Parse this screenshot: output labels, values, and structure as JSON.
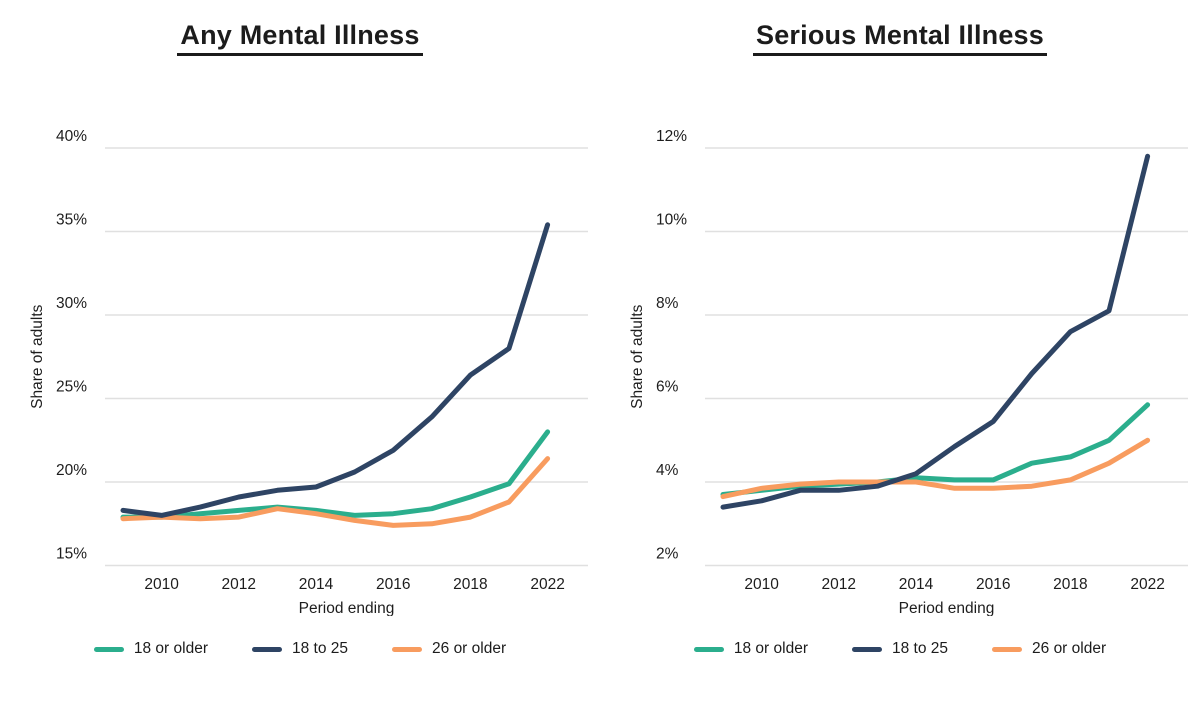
{
  "chart_data": [
    {
      "type": "line",
      "title": "Any Mental Illness",
      "xlabel": "Period ending",
      "ylabel": "Share of adults",
      "x": [
        2009,
        2010,
        2011,
        2012,
        2013,
        2014,
        2015,
        2016,
        2017,
        2018,
        2019,
        2022
      ],
      "x_tick_labels": [
        "2010",
        "2012",
        "2014",
        "2016",
        "2018",
        "2022"
      ],
      "x_tick_years": [
        2010,
        2012,
        2014,
        2016,
        2018,
        2022
      ],
      "ylim": [
        15,
        40
      ],
      "y_ticks": [
        15,
        20,
        25,
        30,
        35,
        40
      ],
      "y_tick_suffix": "%",
      "grid": "horizontal-only",
      "legend_position": "bottom",
      "series": [
        {
          "name": "18 or older",
          "color": "#2bae8d",
          "values": [
            17.9,
            17.9,
            18.1,
            18.3,
            18.5,
            18.3,
            18.0,
            18.1,
            18.4,
            19.1,
            19.9,
            23.0
          ]
        },
        {
          "name": "18 to 25",
          "color": "#2e4464",
          "values": [
            18.3,
            18.0,
            18.5,
            19.1,
            19.5,
            19.7,
            20.6,
            21.9,
            23.9,
            26.4,
            28.0,
            35.4
          ]
        },
        {
          "name": "26 or older",
          "color": "#f89c5f",
          "values": [
            17.8,
            17.9,
            17.8,
            17.9,
            18.4,
            18.1,
            17.7,
            17.4,
            17.5,
            17.9,
            18.8,
            21.4
          ]
        }
      ]
    },
    {
      "type": "line",
      "title": "Serious Mental Illness",
      "xlabel": "Period ending",
      "ylabel": "Share of adults",
      "x": [
        2009,
        2010,
        2011,
        2012,
        2013,
        2014,
        2015,
        2016,
        2017,
        2018,
        2019,
        2022
      ],
      "x_tick_labels": [
        "2010",
        "2012",
        "2014",
        "2016",
        "2018",
        "2022"
      ],
      "x_tick_years": [
        2010,
        2012,
        2014,
        2016,
        2018,
        2022
      ],
      "ylim": [
        2,
        12
      ],
      "y_ticks": [
        2,
        4,
        6,
        8,
        10,
        12
      ],
      "y_tick_suffix": "%",
      "grid": "horizontal-only",
      "legend_position": "bottom",
      "series": [
        {
          "name": "18 or older",
          "color": "#2bae8d",
          "values": [
            3.7,
            3.8,
            3.9,
            3.95,
            4.0,
            4.1,
            4.05,
            4.05,
            4.45,
            4.6,
            5.0,
            5.85
          ]
        },
        {
          "name": "18 to 25",
          "color": "#2e4464",
          "values": [
            3.4,
            3.55,
            3.8,
            3.8,
            3.9,
            4.2,
            4.85,
            5.45,
            6.6,
            7.6,
            8.1,
            11.8
          ]
        },
        {
          "name": "26 or older",
          "color": "#f89c5f",
          "values": [
            3.65,
            3.85,
            3.95,
            4.0,
            4.0,
            4.0,
            3.85,
            3.85,
            3.9,
            4.05,
            4.45,
            5.0
          ]
        }
      ]
    }
  ],
  "colors": {
    "teal": "#2bae8d",
    "navy": "#2e4464",
    "orange": "#f89c5f",
    "gridline": "#e0e0e0",
    "text": "#1c1c1c"
  }
}
